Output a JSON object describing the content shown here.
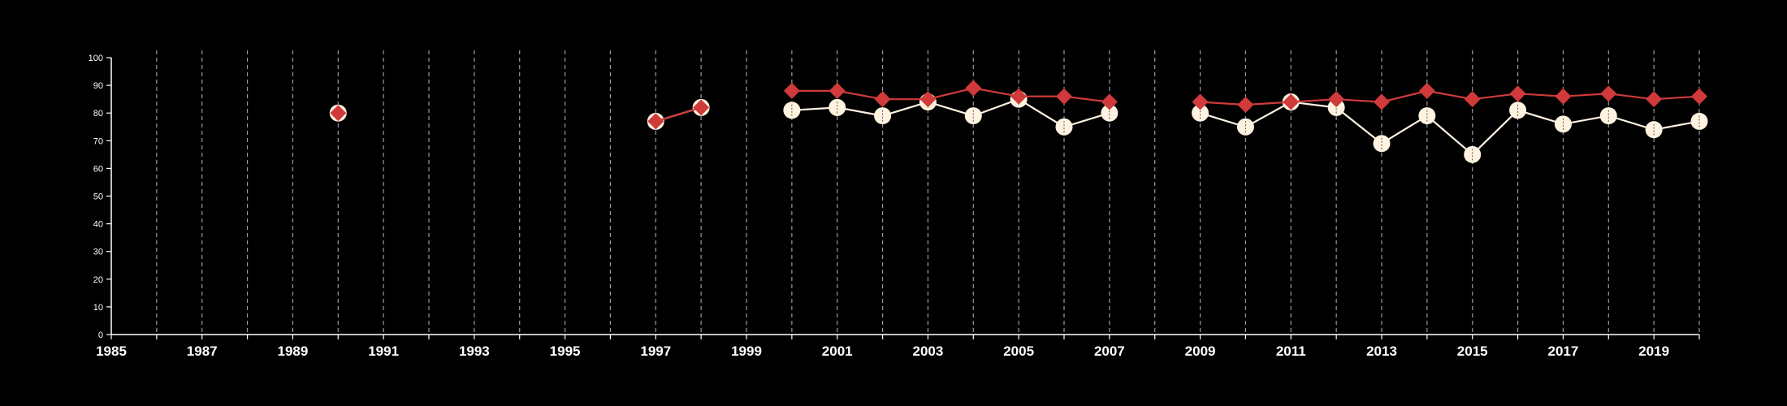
{
  "chart_data": {
    "type": "line",
    "title": "",
    "xlabel": "",
    "ylabel": "",
    "xlim": [
      1985,
      2020
    ],
    "ylim": [
      0,
      100
    ],
    "y_ticks": [
      0,
      10,
      20,
      30,
      40,
      50,
      60,
      70,
      80,
      90,
      100
    ],
    "x_tick_labels": [
      1985,
      1987,
      1989,
      1991,
      1993,
      1995,
      1997,
      1999,
      2001,
      2003,
      2005,
      2007,
      2009,
      2011,
      2013,
      2015,
      2017,
      2019
    ],
    "vertical_gridlines_every_year": true,
    "legend": "none",
    "series": [
      {
        "color": "#fff2e0",
        "marker": "circle",
        "segments": [
          [
            [
              1990,
              80
            ]
          ],
          [
            [
              1997,
              77
            ],
            [
              1998,
              82
            ]
          ],
          [
            [
              2000,
              81
            ],
            [
              2001,
              82
            ],
            [
              2002,
              79
            ],
            [
              2003,
              84
            ],
            [
              2004,
              79
            ],
            [
              2005,
              85
            ],
            [
              2006,
              75
            ],
            [
              2007,
              80
            ]
          ],
          [
            [
              2009,
              80
            ],
            [
              2010,
              75
            ],
            [
              2011,
              84
            ],
            [
              2012,
              82
            ],
            [
              2013,
              69
            ],
            [
              2014,
              79
            ],
            [
              2015,
              65
            ],
            [
              2016,
              81
            ],
            [
              2017,
              76
            ],
            [
              2018,
              79
            ],
            [
              2019,
              74
            ],
            [
              2020,
              77
            ]
          ]
        ]
      },
      {
        "color": "#d13a3a",
        "marker": "diamond",
        "segments": [
          [
            [
              1990,
              80
            ]
          ],
          [
            [
              1997,
              77
            ],
            [
              1998,
              82
            ]
          ],
          [
            [
              2000,
              88
            ],
            [
              2001,
              88
            ],
            [
              2002,
              85
            ],
            [
              2003,
              85
            ],
            [
              2004,
              89
            ],
            [
              2005,
              86
            ],
            [
              2006,
              86
            ],
            [
              2007,
              84
            ]
          ],
          [
            [
              2009,
              84
            ],
            [
              2010,
              83
            ],
            [
              2011,
              84
            ],
            [
              2012,
              85
            ],
            [
              2013,
              84
            ],
            [
              2014,
              88
            ],
            [
              2015,
              85
            ],
            [
              2016,
              87
            ],
            [
              2017,
              86
            ],
            [
              2018,
              87
            ],
            [
              2019,
              85
            ],
            [
              2020,
              86
            ]
          ]
        ]
      }
    ]
  }
}
